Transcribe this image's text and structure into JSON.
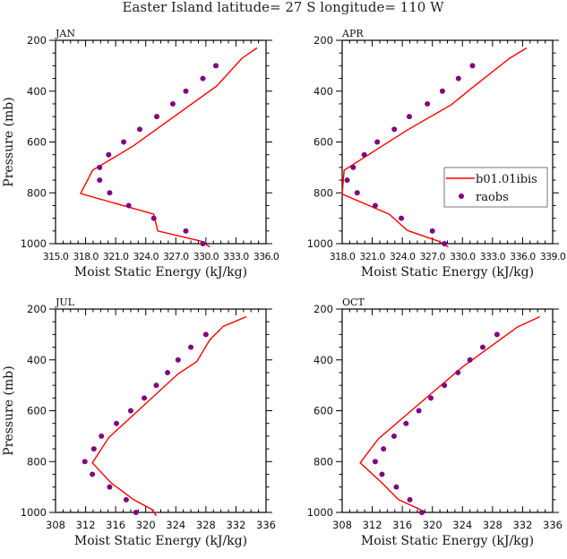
{
  "figure_title": "Easter Island  latitude= 27 S longitude= 110 W",
  "colors": {
    "model": "#ff0000",
    "obs": "#800080",
    "axis": "#000000"
  },
  "legend": {
    "placement": "center-right of APR panel",
    "entries": [
      {
        "label": "b01.01ibis",
        "type": "line"
      },
      {
        "label": "raobs",
        "type": "marker"
      }
    ]
  },
  "chart_data": [
    {
      "type": "line",
      "title": "JAN",
      "xlabel": "Moist Static Energy (kJ/kg)",
      "ylabel": "Pressure (mb)",
      "xlim": [
        315,
        336
      ],
      "ylim": [
        1000,
        200
      ],
      "xticks": [
        315,
        318,
        321,
        324,
        327,
        330,
        333,
        336
      ],
      "xtick_labels": [
        "315.0",
        "318.0",
        "321.0",
        "324.0",
        "327.0",
        "330.0",
        "333.0",
        "336.0"
      ],
      "yticks": [
        200,
        400,
        600,
        800,
        1000
      ],
      "show_xlabel": true,
      "show_ylabel": true,
      "series": [
        {
          "name": "b01.01ibis",
          "kind": "line",
          "x": [
            335.1,
            333.6,
            331.1,
            322.7,
            318.7,
            317.5,
            324.8,
            325.2,
            329.5,
            330.4
          ],
          "p": [
            230,
            271,
            379,
            617,
            711,
            803,
            884,
            950,
            990,
            1013
          ]
        },
        {
          "name": "raobs",
          "kind": "marker",
          "x": [
            331.0,
            329.7,
            328.0,
            326.7,
            325.1,
            323.4,
            321.8,
            320.3,
            319.4,
            319.4,
            320.4,
            322.3,
            324.8,
            328.0,
            329.7
          ],
          "p": [
            300,
            350,
            400,
            450,
            500,
            550,
            600,
            650,
            700,
            750,
            800,
            850,
            900,
            950,
            1000
          ]
        }
      ]
    },
    {
      "type": "line",
      "title": "APR",
      "xlabel": "Moist Static Energy (kJ/kg)",
      "ylabel": "",
      "xlim": [
        318,
        339
      ],
      "ylim": [
        1000,
        200
      ],
      "xticks": [
        318,
        321,
        324,
        327,
        330,
        333,
        336,
        339
      ],
      "xtick_labels": [
        "318.0",
        "321.0",
        "324.0",
        "327.0",
        "330.0",
        "333.0",
        "336.0",
        "339.0"
      ],
      "yticks": [
        200,
        400,
        600,
        800,
        1000
      ],
      "show_xlabel": true,
      "show_ylabel": false,
      "has_legend": true,
      "series": [
        {
          "name": "b01.01ibis",
          "kind": "line",
          "x": [
            336.4,
            334.7,
            330.9,
            328.9,
            324.5,
            318.2,
            318.0,
            322.7,
            324.5,
            327.6,
            328.6
          ],
          "p": [
            230,
            271,
            389,
            453,
            553,
            711,
            805,
            884,
            948,
            990,
            1013
          ]
        },
        {
          "name": "raobs",
          "kind": "marker",
          "x": [
            331.0,
            329.6,
            328.0,
            326.5,
            324.7,
            323.2,
            321.5,
            320.2,
            319.1,
            318.5,
            319.5,
            321.3,
            323.9,
            327.0,
            328.2
          ],
          "p": [
            300,
            350,
            400,
            450,
            500,
            550,
            600,
            650,
            700,
            750,
            800,
            850,
            900,
            950,
            1000
          ]
        }
      ]
    },
    {
      "type": "line",
      "title": "JUL",
      "xlabel": "Moist Static Energy (kJ/kg)",
      "ylabel": "Pressure (mb)",
      "xlim": [
        308,
        336
      ],
      "ylim": [
        1000,
        200
      ],
      "xticks": [
        308,
        312,
        316,
        320,
        324,
        328,
        332,
        336
      ],
      "xtick_labels": [
        "308",
        "312",
        "316",
        "320",
        "324",
        "328",
        "332",
        "336"
      ],
      "yticks": [
        200,
        400,
        600,
        800,
        1000
      ],
      "show_xlabel": true,
      "show_ylabel": true,
      "series": [
        {
          "name": "b01.01ibis",
          "kind": "line",
          "x": [
            333.4,
            330.3,
            328.5,
            326.8,
            324.3,
            315.1,
            312.9,
            315.4,
            318.4,
            320.8,
            321.4
          ],
          "p": [
            230,
            268,
            322,
            406,
            455,
            705,
            805,
            884,
            950,
            988,
            1013
          ]
        },
        {
          "name": "raobs",
          "kind": "marker",
          "x": [
            328.0,
            326.0,
            324.3,
            322.9,
            321.4,
            319.8,
            318.0,
            316.1,
            314.1,
            313.1,
            311.9,
            312.9,
            315.2,
            317.4,
            318.7
          ],
          "p": [
            300,
            350,
            400,
            450,
            500,
            550,
            600,
            650,
            700,
            750,
            800,
            850,
            900,
            950,
            1000
          ]
        }
      ]
    },
    {
      "type": "line",
      "title": "OCT",
      "xlabel": "Moist Static Energy (kJ/kg)",
      "ylabel": "",
      "xlim": [
        308,
        336
      ],
      "ylim": [
        1000,
        200
      ],
      "xticks": [
        308,
        312,
        316,
        320,
        324,
        328,
        332,
        336
      ],
      "xtick_labels": [
        "308",
        "312",
        "316",
        "320",
        "324",
        "328",
        "332",
        "336"
      ],
      "yticks": [
        200,
        400,
        600,
        800,
        1000
      ],
      "show_xlabel": true,
      "show_ylabel": false,
      "series": [
        {
          "name": "b01.01ibis",
          "kind": "line",
          "x": [
            334.3,
            331.3,
            324.0,
            320.3,
            312.8,
            310.4,
            313.3,
            315.5,
            318.3,
            318.9
          ],
          "p": [
            230,
            271,
            428,
            521,
            711,
            805,
            884,
            950,
            987,
            1006
          ]
        },
        {
          "name": "raobs",
          "kind": "marker",
          "x": [
            328.6,
            326.7,
            325.0,
            323.4,
            321.6,
            319.8,
            318.2,
            316.5,
            314.9,
            313.5,
            312.4,
            313.3,
            315.2,
            317.0,
            318.6
          ],
          "p": [
            300,
            350,
            400,
            450,
            500,
            550,
            600,
            650,
            700,
            750,
            800,
            850,
            900,
            950,
            1000
          ]
        }
      ]
    }
  ]
}
